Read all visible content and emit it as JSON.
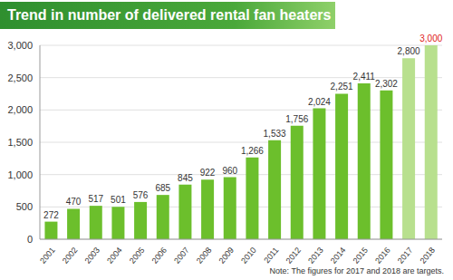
{
  "chart_data": {
    "type": "bar",
    "title": "Trend in number of delivered rental fan heaters",
    "annotations": [
      "Note: The figures for 2017 and 2018 are targets."
    ],
    "categories": [
      "2001",
      "2002",
      "2003",
      "2004",
      "2005",
      "2006",
      "2007",
      "2008",
      "2009",
      "2010",
      "2011",
      "2012",
      "2013",
      "2014",
      "2015",
      "2016",
      "2017",
      "2018"
    ],
    "values": [
      272,
      470,
      517,
      501,
      576,
      685,
      845,
      922,
      960,
      1266,
      1533,
      1756,
      2024,
      2251,
      2411,
      2302,
      2800,
      3000
    ],
    "value_labels": [
      "272",
      "470",
      "517",
      "501",
      "576",
      "685",
      "845",
      "922",
      "960",
      "1,266",
      "1,533",
      "1,756",
      "2,024",
      "2,251",
      "2,411",
      "2,302",
      "2,800",
      "3,000"
    ],
    "colors": [
      "#6cbf2c",
      "#6cbf2c",
      "#6cbf2c",
      "#6cbf2c",
      "#6cbf2c",
      "#6cbf2c",
      "#6cbf2c",
      "#6cbf2c",
      "#6cbf2c",
      "#6cbf2c",
      "#6cbf2c",
      "#6cbf2c",
      "#6cbf2c",
      "#6cbf2c",
      "#6cbf2c",
      "#6cbf2c",
      "#b8e08e",
      "#b8e08e"
    ],
    "ylim": [
      0,
      3000
    ],
    "yticks": [
      0,
      500,
      {
        "value": 1000,
        "label": "1,000"
      },
      {
        "value": 1500,
        "label": "1,500"
      },
      {
        "value": 2000,
        "label": "2,000"
      },
      {
        "value": 2500,
        "label": "2,500"
      },
      {
        "value": 3000,
        "label": "3,000"
      }
    ],
    "grid": true,
    "data_labels": true
  }
}
